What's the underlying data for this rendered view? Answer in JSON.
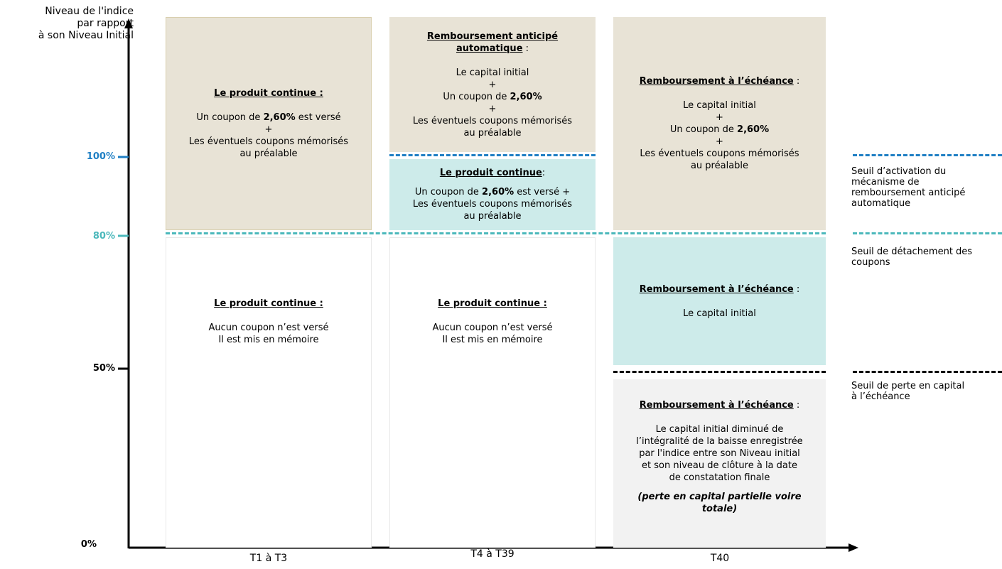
{
  "y_axis": {
    "title": [
      "Niveau de l'indice",
      "par rapport",
      "à son Niveau Initial"
    ],
    "ticks": {
      "t100": "100%",
      "t80": "80%",
      "t50": "50%",
      "t0": "0%"
    }
  },
  "x_axis": {
    "periods": [
      "T1 à T3",
      "T4 à T39",
      "T40"
    ]
  },
  "colors": {
    "beige": "#e8e3d6",
    "teal": "#cdebea",
    "grey": "#f2f2f2",
    "blue_line": "#1f7fc4",
    "teal_line": "#4bb8bb",
    "black_line": "#000000"
  },
  "cells": {
    "c1_top": {
      "title": "Le produit continue :",
      "l1_pre": "Un coupon de ",
      "l1_bold": "2,60%",
      "l1_post": " est versé",
      "plus": "+",
      "l2": "Les éventuels coupons mémorisés",
      "l3": "au préalable"
    },
    "c1_bottom": {
      "title": "Le produit continue :",
      "l1": "Aucun coupon n’est versé",
      "l2": "Il est mis en mémoire"
    },
    "c2_top": {
      "title_1": "Remboursement anticipé",
      "title_2": "automatique",
      "title_suffix": " :",
      "l1": "Le capital initial",
      "plus": "+",
      "l2_pre": "Un coupon de ",
      "l2_bold": "2,60%",
      "l3": "Les éventuels coupons mémorisés",
      "l4": "au préalable"
    },
    "c2_mid": {
      "title": "Le produit continue",
      "title_suffix": ":",
      "l1_pre": "Un coupon de ",
      "l1_bold": "2,60%",
      "l1_post": " est versé +",
      "l2": "Les éventuels coupons mémorisés",
      "l3": "au préalable"
    },
    "c2_bottom": {
      "title": "Le produit continue :",
      "l1": "Aucun coupon n’est versé",
      "l2": "Il est mis en mémoire"
    },
    "c3_top": {
      "title": "Remboursement à l’échéance",
      "title_suffix": " :",
      "l1": "Le capital initial",
      "plus": "+",
      "l2_pre": "Un coupon de ",
      "l2_bold": "2,60%",
      "l3": "Les éventuels coupons mémorisés",
      "l4": "au préalable"
    },
    "c3_mid": {
      "title": "Remboursement à l’échéance",
      "title_suffix": " :",
      "l1": "Le capital initial"
    },
    "c3_bottom": {
      "title": "Remboursement à l’échéance",
      "title_suffix": " :",
      "lines": [
        "Le capital initial diminué de",
        "l’intégralité de la baisse enregistrée",
        "par l'indice entre son Niveau initial",
        "et son niveau de clôture à la date",
        "de constatation finale"
      ],
      "note_1": "(perte en capital partielle voire",
      "note_2": "totale)"
    }
  },
  "thresholds": {
    "early_redemption": [
      "Seuil d’activation du",
      "mécanisme de",
      "remboursement anticipé",
      "automatique"
    ],
    "coupon": [
      "Seuil de détachement des",
      "coupons"
    ],
    "capital_loss": [
      "Seuil de perte en capital",
      "à l’échéance"
    ]
  }
}
